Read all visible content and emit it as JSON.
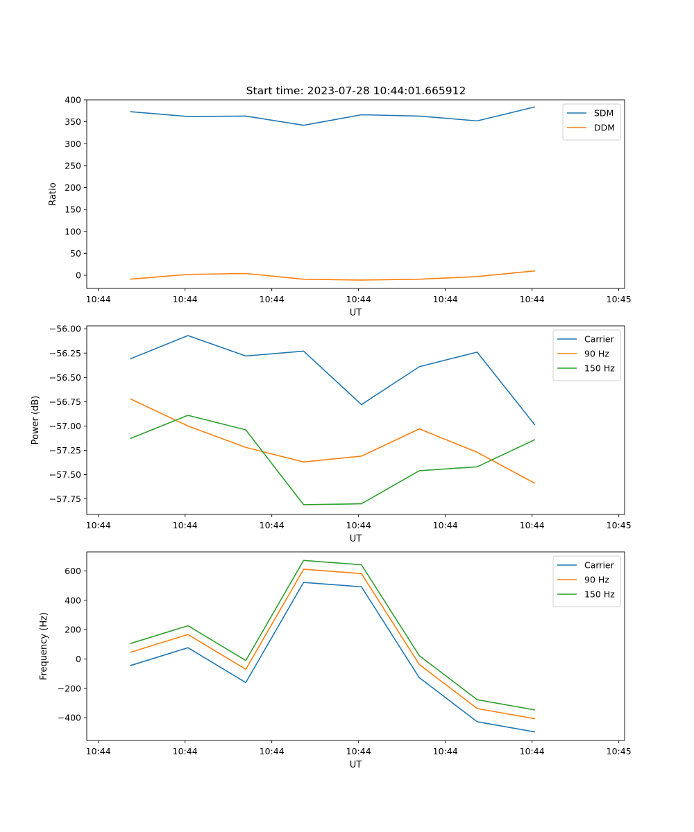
{
  "figure_title": "Start time: 2023-07-28 10:44:01.665912",
  "chart_data": [
    {
      "type": "line",
      "title": "Start time: 2023-07-28 10:44:01.665912",
      "xlabel": "UT",
      "ylabel": "Ratio",
      "xlim": [
        0,
        9.3
      ],
      "ylim": [
        -30,
        400
      ],
      "x": [
        0.75,
        1.75,
        2.75,
        3.75,
        4.75,
        5.75,
        6.75,
        7.75
      ],
      "x_ticks": [
        0.2,
        1.7,
        3.2,
        4.7,
        6.2,
        7.7,
        9.2
      ],
      "x_tick_labels": [
        "10:44",
        "10:44",
        "10:44",
        "10:44",
        "10:44",
        "10:44",
        "10:45"
      ],
      "y_ticks": [
        0,
        50,
        100,
        150,
        200,
        250,
        300,
        350,
        400
      ],
      "y_tick_labels": [
        "0",
        "50",
        "100",
        "150",
        "200",
        "250",
        "300",
        "350",
        "400"
      ],
      "legend_position": "upper-right",
      "series": [
        {
          "name": "SDM",
          "color": "#1f77b4",
          "values": [
            373,
            362,
            363,
            342,
            366,
            363,
            352,
            384
          ]
        },
        {
          "name": "DDM",
          "color": "#ff7f0e",
          "values": [
            -9,
            2,
            4,
            -9,
            -11,
            -9,
            -3,
            10
          ]
        }
      ]
    },
    {
      "type": "line",
      "title": "",
      "xlabel": "UT",
      "ylabel": "Power (dB)",
      "xlim": [
        0,
        9.3
      ],
      "ylim": [
        -57.91,
        -55.97
      ],
      "x": [
        0.75,
        1.75,
        2.75,
        3.75,
        4.75,
        5.75,
        6.75,
        7.75
      ],
      "x_ticks": [
        0.2,
        1.7,
        3.2,
        4.7,
        6.2,
        7.7,
        9.2
      ],
      "x_tick_labels": [
        "10:44",
        "10:44",
        "10:44",
        "10:44",
        "10:44",
        "10:44",
        "10:45"
      ],
      "y_ticks": [
        -56.0,
        -56.25,
        -56.5,
        -56.75,
        -57.0,
        -57.25,
        -57.5,
        -57.75
      ],
      "y_tick_labels": [
        "−56.00",
        "−56.25",
        "−56.50",
        "−56.75",
        "−57.00",
        "−57.25",
        "−57.50",
        "−57.75"
      ],
      "legend_position": "upper-right",
      "series": [
        {
          "name": "Carrier",
          "color": "#1f77b4",
          "values": [
            -56.31,
            -56.07,
            -56.28,
            -56.23,
            -56.78,
            -56.39,
            -56.24,
            -56.99
          ]
        },
        {
          "name": "90 Hz",
          "color": "#ff7f0e",
          "values": [
            -56.72,
            -57.0,
            -57.22,
            -57.37,
            -57.31,
            -57.03,
            -57.27,
            -57.59
          ]
        },
        {
          "name": "150 Hz",
          "color": "#2ca02c",
          "values": [
            -57.13,
            -56.89,
            -57.04,
            -57.81,
            -57.8,
            -57.46,
            -57.42,
            -57.14
          ]
        }
      ]
    },
    {
      "type": "line",
      "title": "",
      "xlabel": "UT",
      "ylabel": "Frequency (Hz)",
      "xlim": [
        0,
        9.3
      ],
      "ylim": [
        -555,
        730
      ],
      "x": [
        0.75,
        1.75,
        2.75,
        3.75,
        4.75,
        5.75,
        6.75,
        7.75
      ],
      "x_ticks": [
        0.2,
        1.7,
        3.2,
        4.7,
        6.2,
        7.7,
        9.2
      ],
      "x_tick_labels": [
        "10:44",
        "10:44",
        "10:44",
        "10:44",
        "10:44",
        "10:44",
        "10:45"
      ],
      "y_ticks": [
        -400,
        -200,
        0,
        200,
        400,
        600
      ],
      "y_tick_labels": [
        "−400",
        "−200",
        "0",
        "200",
        "400",
        "600"
      ],
      "legend_position": "upper-right",
      "series": [
        {
          "name": "Carrier",
          "color": "#1f77b4",
          "values": [
            -45,
            77,
            -160,
            522,
            492,
            -127,
            -427,
            -497
          ]
        },
        {
          "name": "90 Hz",
          "color": "#ff7f0e",
          "values": [
            45,
            167,
            -70,
            612,
            582,
            -37,
            -337,
            -407
          ]
        },
        {
          "name": "150 Hz",
          "color": "#2ca02c",
          "values": [
            105,
            227,
            -10,
            672,
            642,
            23,
            -277,
            -347
          ]
        }
      ]
    }
  ]
}
